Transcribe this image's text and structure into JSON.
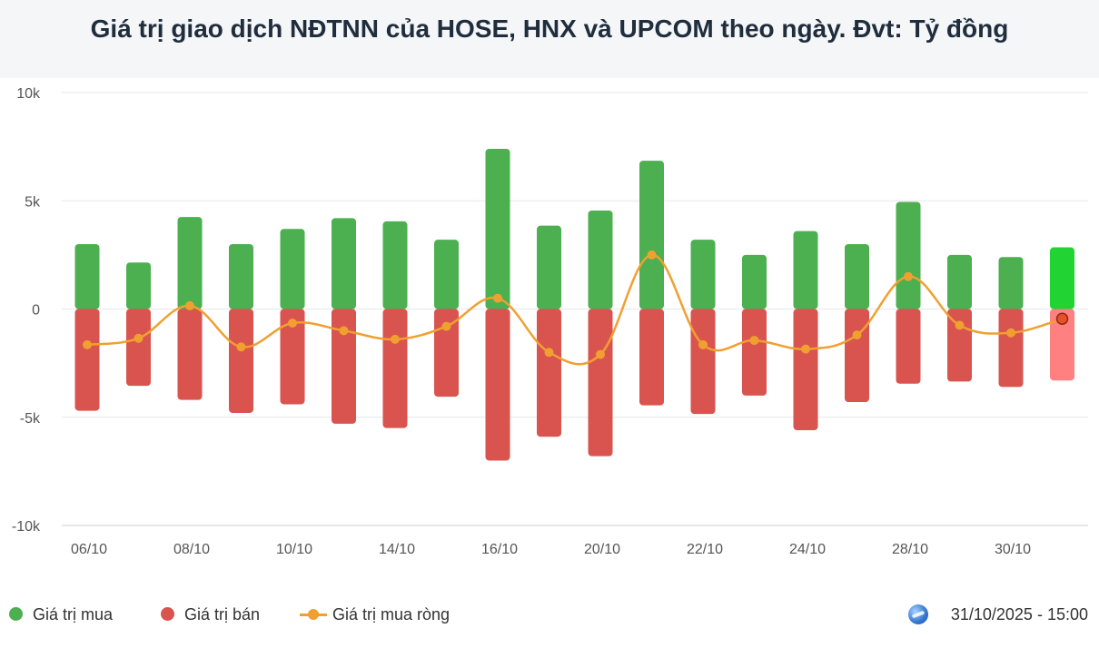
{
  "title": "Giá trị giao dịch NĐTNN của HOSE, HNX và UPCOM theo ngày. Đvt: Tỷ đồng",
  "legend": {
    "buy": "Giá trị mua",
    "sell": "Giá trị bán",
    "net": "Giá trị mua ròng"
  },
  "timestamp": "31/10/2025 - 15:00",
  "colors": {
    "buy": "#4caf50",
    "sell": "#d9534f",
    "net": "#f0a030",
    "buy_highlight": "#22d433",
    "sell_highlight": "#ff8080"
  },
  "chart_data": {
    "type": "bar",
    "y_ticks": [
      "10k",
      "5k",
      "0",
      "-5k",
      "-10k"
    ],
    "ylim": [
      -10000,
      10000
    ],
    "x_tick_labels": [
      "06/10",
      "08/10",
      "10/10",
      "14/10",
      "16/10",
      "20/10",
      "22/10",
      "24/10",
      "28/10",
      "30/10"
    ],
    "x_tick_label_indices": [
      0,
      2,
      4,
      6,
      8,
      10,
      12,
      14,
      16,
      18
    ],
    "highlight_index": 19,
    "grid": true,
    "legend_position": "bottom-left",
    "series": [
      {
        "name": "Giá trị mua",
        "kind": "bar",
        "values": [
          3000,
          2150,
          4250,
          3000,
          3700,
          4200,
          4050,
          3200,
          7400,
          3850,
          4550,
          6850,
          3200,
          2500,
          3600,
          3000,
          4950,
          2500,
          2400,
          2850
        ]
      },
      {
        "name": "Giá trị bán",
        "kind": "bar",
        "values": [
          -4700,
          -3550,
          -4200,
          -4800,
          -4400,
          -5300,
          -5500,
          -4050,
          -7000,
          -5900,
          -6800,
          -4450,
          -4850,
          -4000,
          -5600,
          -4300,
          -3450,
          -3350,
          -3600,
          -3300
        ]
      },
      {
        "name": "Giá trị mua ròng",
        "kind": "line",
        "values": [
          -1650,
          -1350,
          150,
          -1750,
          -650,
          -1000,
          -1400,
          -800,
          500,
          -2000,
          -2100,
          2500,
          -1650,
          -1450,
          -1850,
          -1200,
          1500,
          -750,
          -1100,
          -450
        ]
      }
    ]
  }
}
